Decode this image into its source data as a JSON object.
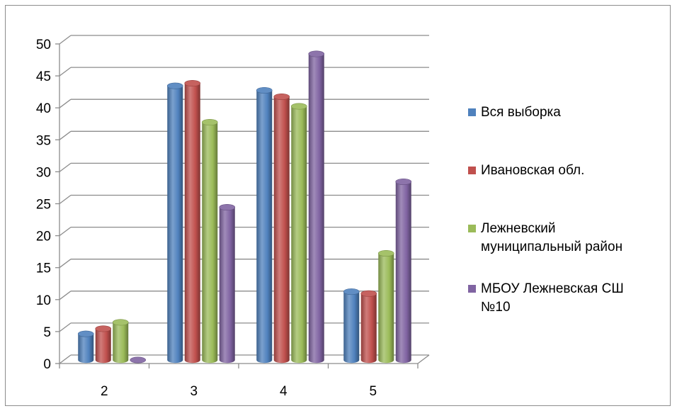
{
  "chart_data": {
    "type": "bar",
    "title": "",
    "xlabel": "",
    "ylabel": "",
    "categories": [
      "2",
      "3",
      "4",
      "5"
    ],
    "ylim": [
      0,
      50
    ],
    "yticks": [
      0,
      5,
      10,
      15,
      20,
      25,
      30,
      35,
      40,
      45,
      50
    ],
    "grid": true,
    "legend_position": "right",
    "series": [
      {
        "name": "Вся выборка",
        "color": "#4f81bd",
        "values": [
          4.2,
          43,
          42.3,
          10.8
        ]
      },
      {
        "name": "Ивановская обл.",
        "color": "#c0504d",
        "values": [
          5,
          43.4,
          41.3,
          10.5
        ]
      },
      {
        "name": "Лежневский муниципальный район",
        "color": "#9bbb59",
        "values": [
          6,
          37.3,
          39.8,
          16.8
        ]
      },
      {
        "name": "МБОУ Лежневская СШ №10",
        "color": "#8064a2",
        "values": [
          0,
          24,
          48,
          28
        ]
      }
    ],
    "legend_lines": [
      [
        "Вся выборка"
      ],
      [
        "Ивановская обл."
      ],
      [
        "Лежневский",
        "муниципальный район"
      ],
      [
        "МБОУ Лежневская СШ",
        "№10"
      ]
    ]
  }
}
